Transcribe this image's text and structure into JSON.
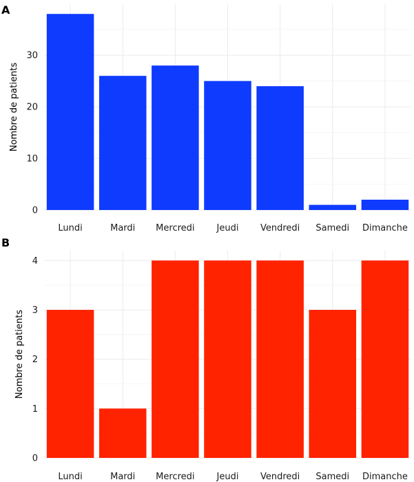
{
  "chart_data": [
    {
      "type": "bar",
      "panel_label": "A",
      "categories": [
        "Lundi",
        "Mardi",
        "Mercredi",
        "Jeudi",
        "Vendredi",
        "Samedi",
        "Dimanche"
      ],
      "values": [
        38,
        26,
        28,
        25,
        24,
        1,
        2
      ],
      "ylabel": "Nombre de patients",
      "xlabel": "",
      "ylim": [
        0,
        39.9
      ],
      "yticks": [
        0,
        10,
        20,
        30
      ],
      "color": "#0f3bff",
      "grid": true,
      "legend": "none"
    },
    {
      "type": "bar",
      "panel_label": "B",
      "categories": [
        "Lundi",
        "Mardi",
        "Mercredi",
        "Jeudi",
        "Vendredi",
        "Samedi",
        "Dimanche"
      ],
      "values": [
        3,
        1,
        4,
        4,
        4,
        3,
        4
      ],
      "ylabel": "Nombre de patients",
      "xlabel": "",
      "ylim": [
        0,
        4.2
      ],
      "yticks": [
        0,
        1,
        2,
        3,
        4
      ],
      "color": "#ff2300",
      "grid": true,
      "legend": "none"
    }
  ]
}
